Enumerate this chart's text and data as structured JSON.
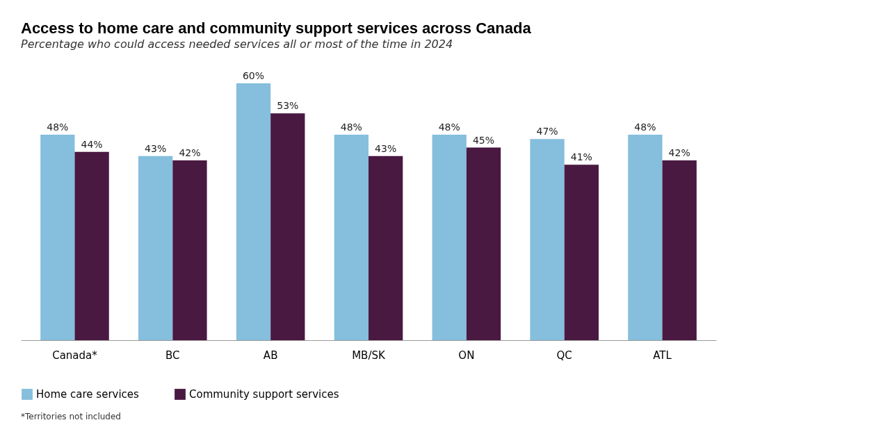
{
  "chart_data": {
    "type": "bar",
    "title": "Access to home care and community support services across Canada",
    "subtitle": "Percentage who could access needed services all or most of the time in 2024",
    "categories": [
      "Canada*",
      "BC",
      "AB",
      "MB/SK",
      "ON",
      "QC",
      "ATL"
    ],
    "series": [
      {
        "name": "Home care services",
        "color": "#86bedd",
        "values": [
          48,
          43,
          60,
          48,
          48,
          47,
          48
        ],
        "value_labels": [
          "48%",
          "43%",
          "60%",
          "48%",
          "48%",
          "47%",
          "48%"
        ]
      },
      {
        "name": "Community support services",
        "color": "#4a1942",
        "values": [
          44,
          42,
          53,
          43,
          45,
          41,
          42
        ],
        "value_labels": [
          "44%",
          "42%",
          "53%",
          "43%",
          "45%",
          "41%",
          "42%"
        ]
      }
    ],
    "annotations": [
      "*Territories not included"
    ],
    "legend": "bottom",
    "grid": false
  }
}
